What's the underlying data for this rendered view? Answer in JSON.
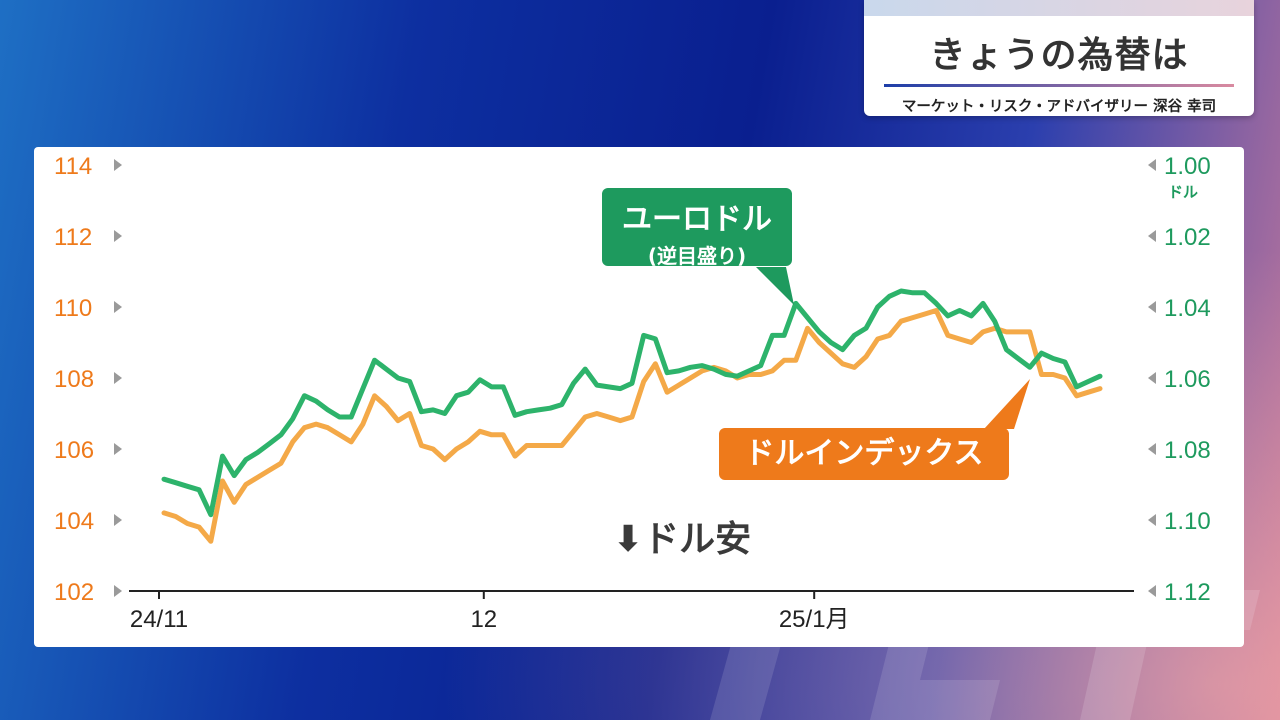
{
  "header": {
    "title": "きょうの為替は",
    "subtitle": "マーケット・リスク・アドバイザリー 深谷 幸司"
  },
  "annotations": {
    "euro_label_line1": "ユーロドル",
    "euro_label_line2": "(逆目盛り)",
    "dxy_label": "ドルインデックス",
    "weak_dollar_arrow": "⬇",
    "weak_dollar_text": "ドル安"
  },
  "colors": {
    "dxy": "#ee7a1b",
    "euro": "#1e9a5e",
    "dxy_line": "#f4a948",
    "euro_line": "#2db36b"
  },
  "chart_data": {
    "type": "line",
    "x_ticks": [
      "24/11",
      "12",
      "25/1月"
    ],
    "left_axis": {
      "ylim": [
        102,
        114
      ],
      "ticks": [
        "102",
        "104",
        "106",
        "108",
        "110",
        "112",
        "114"
      ],
      "color": "#ee7a1b"
    },
    "right_axis": {
      "ylim": [
        1.12,
        1.0
      ],
      "inverted": true,
      "ticks": [
        "1.00",
        "1.02",
        "1.04",
        "1.06",
        "1.08",
        "1.10",
        "1.12"
      ],
      "unit": "ドル",
      "color": "#1e9a5e"
    },
    "series": [
      {
        "name": "ドルインデックス",
        "axis": "left",
        "values": [
          104.2,
          104.1,
          103.9,
          103.8,
          103.4,
          105.1,
          104.5,
          105.0,
          105.2,
          105.4,
          105.6,
          106.2,
          106.6,
          106.7,
          106.6,
          106.4,
          106.2,
          106.7,
          107.5,
          107.2,
          106.8,
          107.0,
          106.1,
          106.0,
          105.7,
          106.0,
          106.2,
          106.5,
          106.4,
          106.4,
          105.8,
          106.1,
          106.1,
          106.1,
          106.1,
          106.5,
          106.9,
          107.0,
          106.9,
          106.8,
          106.9,
          107.9,
          108.4,
          107.6,
          107.8,
          108.0,
          108.2,
          108.3,
          108.2,
          108.0,
          108.1,
          108.1,
          108.2,
          108.5,
          108.5,
          109.4,
          109.0,
          108.7,
          108.4,
          108.3,
          108.6,
          109.1,
          109.2,
          109.6,
          109.7,
          109.8,
          109.9,
          109.2,
          109.1,
          109.0,
          109.3,
          109.4,
          109.3,
          109.3,
          109.3,
          108.1,
          108.1,
          108.0,
          107.5,
          107.6,
          107.7
        ]
      },
      {
        "name": "ユーロドル",
        "axis": "right",
        "values": [
          1.0885,
          1.0895,
          1.0905,
          1.0915,
          1.0985,
          1.082,
          1.0875,
          1.083,
          1.081,
          1.0785,
          1.076,
          1.0715,
          1.065,
          1.0665,
          1.069,
          1.071,
          1.071,
          1.063,
          1.055,
          1.0575,
          1.06,
          1.061,
          1.0695,
          1.069,
          1.07,
          1.065,
          1.064,
          1.0605,
          1.0625,
          1.0625,
          1.0705,
          1.0695,
          1.069,
          1.0685,
          1.0675,
          1.0615,
          1.0575,
          1.062,
          1.0625,
          1.063,
          1.0615,
          1.048,
          1.049,
          1.0585,
          1.058,
          1.057,
          1.0565,
          1.0575,
          1.059,
          1.0595,
          1.058,
          1.0565,
          1.048,
          1.048,
          1.039,
          1.043,
          1.047,
          1.05,
          1.052,
          1.048,
          1.046,
          1.04,
          1.037,
          1.0355,
          1.036,
          1.036,
          1.039,
          1.0425,
          1.041,
          1.0425,
          1.039,
          1.044,
          1.052,
          1.0545,
          1.057,
          1.053,
          1.0545,
          1.0555,
          1.0625,
          1.061,
          1.0595
        ]
      }
    ]
  }
}
